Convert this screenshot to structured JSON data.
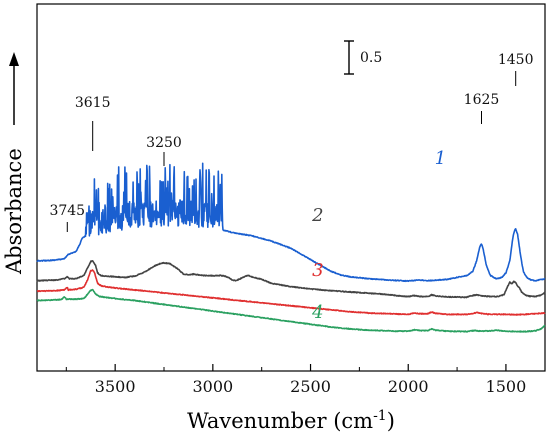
{
  "chart_data": {
    "type": "line",
    "xlabel": "Wavenumber (cm",
    "xlabel_sup": "-1",
    "xlabel_close": ")",
    "ylabel": "Absorbance",
    "xlim": [
      3900,
      1300
    ],
    "x_reversed": true,
    "x_ticks": [
      3500,
      3000,
      2500,
      2000,
      1500
    ],
    "scale_bar_label": "0.5",
    "scale_bar_value": 0.5,
    "series": [
      {
        "name": "1",
        "color": "#1a5fd0",
        "label_x": 1660,
        "label_y": 0.235,
        "noise_region": [
          3650,
          2950
        ],
        "points": [
          [
            3900,
            1.3
          ],
          [
            3820,
            1.31
          ],
          [
            3760,
            1.33
          ],
          [
            3740,
            1.4
          ],
          [
            3720,
            1.42
          ],
          [
            3700,
            1.44
          ],
          [
            3680,
            1.56
          ],
          [
            3670,
            1.64
          ],
          [
            3650,
            1.68
          ],
          [
            3600,
            1.69
          ],
          [
            3550,
            1.7
          ],
          [
            3500,
            1.73
          ],
          [
            3450,
            1.78
          ],
          [
            3400,
            1.8
          ],
          [
            3300,
            1.82
          ],
          [
            3200,
            1.83
          ],
          [
            3100,
            1.82
          ],
          [
            3000,
            1.79
          ],
          [
            2950,
            1.77
          ],
          [
            2900,
            1.73
          ],
          [
            2800,
            1.68
          ],
          [
            2700,
            1.6
          ],
          [
            2600,
            1.49
          ],
          [
            2500,
            1.32
          ],
          [
            2400,
            1.15
          ],
          [
            2350,
            1.09
          ],
          [
            2300,
            1.06
          ],
          [
            2200,
            1.03
          ],
          [
            2100,
            1.01
          ],
          [
            2000,
            0.995
          ],
          [
            1950,
            1.01
          ],
          [
            1900,
            1.0
          ],
          [
            1850,
            1.01
          ],
          [
            1800,
            1.02
          ],
          [
            1750,
            1.05
          ],
          [
            1700,
            1.08
          ],
          [
            1670,
            1.14
          ],
          [
            1650,
            1.3
          ],
          [
            1635,
            1.5
          ],
          [
            1625,
            1.56
          ],
          [
            1615,
            1.46
          ],
          [
            1600,
            1.23
          ],
          [
            1580,
            1.08
          ],
          [
            1550,
            1.03
          ],
          [
            1520,
            1.05
          ],
          [
            1500,
            1.12
          ],
          [
            1480,
            1.3
          ],
          [
            1465,
            1.65
          ],
          [
            1455,
            1.77
          ],
          [
            1450,
            1.78
          ],
          [
            1440,
            1.7
          ],
          [
            1425,
            1.38
          ],
          [
            1410,
            1.13
          ],
          [
            1390,
            1.04
          ],
          [
            1370,
            1.01
          ],
          [
            1350,
            1.0
          ],
          [
            1330,
            1.01
          ],
          [
            1300,
            1.03
          ]
        ]
      },
      {
        "name": "2",
        "color": "#444444",
        "label_x": 1980,
        "label_y": 0.235,
        "points": [
          [
            3900,
            1.0
          ],
          [
            3800,
            1.01
          ],
          [
            3760,
            1.03
          ],
          [
            3745,
            1.06
          ],
          [
            3735,
            1.03
          ],
          [
            3700,
            1.03
          ],
          [
            3660,
            1.08
          ],
          [
            3640,
            1.2
          ],
          [
            3625,
            1.29
          ],
          [
            3615,
            1.3
          ],
          [
            3600,
            1.23
          ],
          [
            3590,
            1.12
          ],
          [
            3575,
            1.08
          ],
          [
            3550,
            1.07
          ],
          [
            3500,
            1.06
          ],
          [
            3450,
            1.05
          ],
          [
            3400,
            1.07
          ],
          [
            3350,
            1.13
          ],
          [
            3300,
            1.22
          ],
          [
            3270,
            1.26
          ],
          [
            3250,
            1.27
          ],
          [
            3220,
            1.26
          ],
          [
            3180,
            1.18
          ],
          [
            3150,
            1.1
          ],
          [
            3120,
            1.09
          ],
          [
            3100,
            1.1
          ],
          [
            3050,
            1.08
          ],
          [
            3000,
            1.075
          ],
          [
            2960,
            1.08
          ],
          [
            2940,
            1.07
          ],
          [
            2920,
            1.05
          ],
          [
            2900,
            1.01
          ],
          [
            2880,
            1.0
          ],
          [
            2860,
            1.03
          ],
          [
            2840,
            1.06
          ],
          [
            2820,
            1.08
          ],
          [
            2800,
            1.06
          ],
          [
            2750,
            1.02
          ],
          [
            2700,
            0.96
          ],
          [
            2600,
            0.91
          ],
          [
            2500,
            0.875
          ],
          [
            2400,
            0.85
          ],
          [
            2300,
            0.83
          ],
          [
            2200,
            0.81
          ],
          [
            2100,
            0.79
          ],
          [
            2050,
            0.77
          ],
          [
            2000,
            0.76
          ],
          [
            1970,
            0.775
          ],
          [
            1940,
            0.76
          ],
          [
            1900,
            0.76
          ],
          [
            1880,
            0.785
          ],
          [
            1860,
            0.77
          ],
          [
            1800,
            0.755
          ],
          [
            1700,
            0.75
          ],
          [
            1680,
            0.77
          ],
          [
            1650,
            0.785
          ],
          [
            1620,
            0.77
          ],
          [
            1580,
            0.76
          ],
          [
            1540,
            0.76
          ],
          [
            1510,
            0.79
          ],
          [
            1490,
            0.92
          ],
          [
            1480,
            0.98
          ],
          [
            1470,
            0.95
          ],
          [
            1460,
            0.99
          ],
          [
            1450,
            0.97
          ],
          [
            1440,
            0.92
          ],
          [
            1430,
            0.89
          ],
          [
            1420,
            0.83
          ],
          [
            1400,
            0.78
          ],
          [
            1380,
            0.765
          ],
          [
            1350,
            0.76
          ],
          [
            1320,
            0.78
          ],
          [
            1300,
            0.82
          ]
        ]
      },
      {
        "name": "3",
        "color": "#e03030",
        "label_x": 1980,
        "label_y": 0.235,
        "points": [
          [
            3900,
            0.84
          ],
          [
            3800,
            0.85
          ],
          [
            3760,
            0.86
          ],
          [
            3745,
            0.9
          ],
          [
            3740,
            0.86
          ],
          [
            3700,
            0.87
          ],
          [
            3660,
            0.9
          ],
          [
            3640,
            1.02
          ],
          [
            3625,
            1.15
          ],
          [
            3615,
            1.16
          ],
          [
            3605,
            1.12
          ],
          [
            3590,
            0.96
          ],
          [
            3570,
            0.92
          ],
          [
            3500,
            0.89
          ],
          [
            3400,
            0.86
          ],
          [
            3300,
            0.83
          ],
          [
            3200,
            0.8
          ],
          [
            3100,
            0.77
          ],
          [
            3000,
            0.74
          ],
          [
            2900,
            0.71
          ],
          [
            2800,
            0.68
          ],
          [
            2700,
            0.65
          ],
          [
            2600,
            0.62
          ],
          [
            2500,
            0.59
          ],
          [
            2400,
            0.56
          ],
          [
            2300,
            0.53
          ],
          [
            2200,
            0.51
          ],
          [
            2100,
            0.5
          ],
          [
            2000,
            0.49
          ],
          [
            1970,
            0.51
          ],
          [
            1940,
            0.5
          ],
          [
            1900,
            0.5
          ],
          [
            1880,
            0.525
          ],
          [
            1860,
            0.505
          ],
          [
            1800,
            0.49
          ],
          [
            1700,
            0.49
          ],
          [
            1670,
            0.5
          ],
          [
            1650,
            0.52
          ],
          [
            1630,
            0.505
          ],
          [
            1580,
            0.49
          ],
          [
            1500,
            0.49
          ],
          [
            1450,
            0.485
          ],
          [
            1400,
            0.49
          ],
          [
            1350,
            0.5
          ],
          [
            1300,
            0.51
          ]
        ]
      },
      {
        "name": "4",
        "color": "#2aa060",
        "label_x": 1980,
        "label_y": 0.235,
        "points": [
          [
            3900,
            0.7
          ],
          [
            3800,
            0.71
          ],
          [
            3770,
            0.72
          ],
          [
            3760,
            0.76
          ],
          [
            3750,
            0.72
          ],
          [
            3700,
            0.72
          ],
          [
            3660,
            0.73
          ],
          [
            3640,
            0.8
          ],
          [
            3625,
            0.855
          ],
          [
            3615,
            0.86
          ],
          [
            3600,
            0.8
          ],
          [
            3580,
            0.76
          ],
          [
            3500,
            0.73
          ],
          [
            3400,
            0.7
          ],
          [
            3300,
            0.66
          ],
          [
            3200,
            0.62
          ],
          [
            3100,
            0.58
          ],
          [
            3000,
            0.54
          ],
          [
            2900,
            0.5
          ],
          [
            2800,
            0.46
          ],
          [
            2700,
            0.42
          ],
          [
            2600,
            0.38
          ],
          [
            2500,
            0.34
          ],
          [
            2400,
            0.3
          ],
          [
            2300,
            0.27
          ],
          [
            2200,
            0.25
          ],
          [
            2100,
            0.24
          ],
          [
            2050,
            0.235
          ],
          [
            2000,
            0.235
          ],
          [
            1970,
            0.255
          ],
          [
            1940,
            0.245
          ],
          [
            1900,
            0.245
          ],
          [
            1880,
            0.27
          ],
          [
            1860,
            0.25
          ],
          [
            1800,
            0.235
          ],
          [
            1700,
            0.23
          ],
          [
            1660,
            0.245
          ],
          [
            1630,
            0.235
          ],
          [
            1580,
            0.24
          ],
          [
            1550,
            0.25
          ],
          [
            1500,
            0.235
          ],
          [
            1450,
            0.23
          ],
          [
            1400,
            0.23
          ],
          [
            1350,
            0.24
          ],
          [
            1320,
            0.27
          ],
          [
            1300,
            0.32
          ]
        ]
      }
    ],
    "peak_annotations": [
      {
        "label": "3615",
        "x": 3615
      },
      {
        "label": "3250",
        "x": 3250
      },
      {
        "label": "3745",
        "x": 3745
      },
      {
        "label": "1625",
        "x": 1625
      },
      {
        "label": "1450",
        "x": 1450
      }
    ]
  }
}
